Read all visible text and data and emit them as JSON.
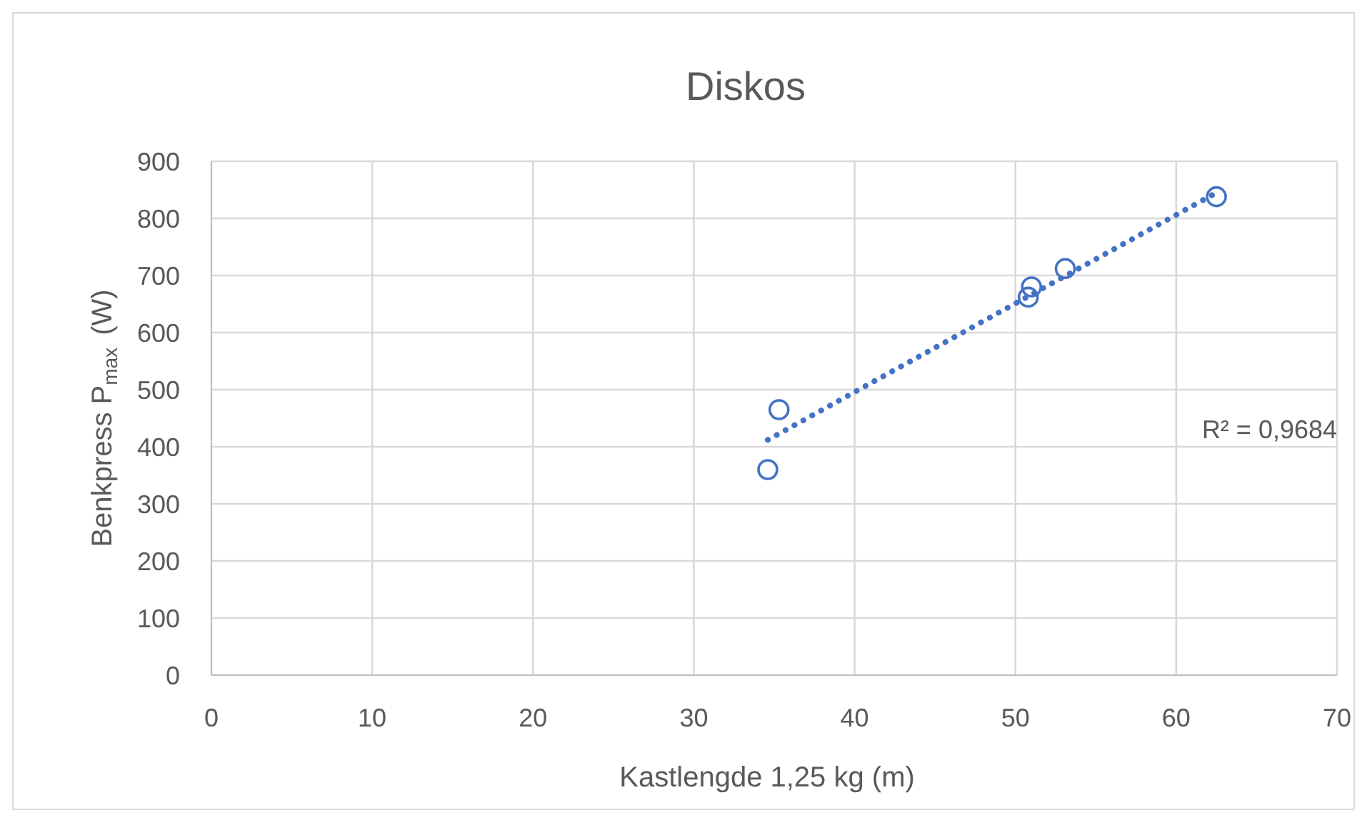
{
  "chart_data": {
    "type": "scatter",
    "title": "Diskos",
    "xlabel": "Kastlengde 1,25 kg (m)",
    "ylabel": "Benkpress P$_{max}$ (W)",
    "xlim": [
      0,
      70
    ],
    "xticks": [
      0,
      10,
      20,
      30,
      40,
      50,
      60,
      70
    ],
    "ylim": [
      0,
      900
    ],
    "yticks": [
      0,
      100,
      200,
      300,
      400,
      500,
      600,
      700,
      800,
      900
    ],
    "grid": true,
    "marker": "circle",
    "series": [
      {
        "color": "#4472c4",
        "x": [
          34.6,
          35.3,
          50.8,
          51.0,
          53.1,
          62.5
        ],
        "values": [
          360,
          465,
          662,
          680,
          712,
          838
        ]
      },
      {
        "type": "line",
        "color": "#4472c4",
        "line_style": "dotted",
        "marker": "none",
        "x": [
          34.6,
          62.5
        ],
        "values": [
          412,
          845
        ]
      }
    ],
    "annotations": [
      "R² = 0,9684"
    ]
  }
}
